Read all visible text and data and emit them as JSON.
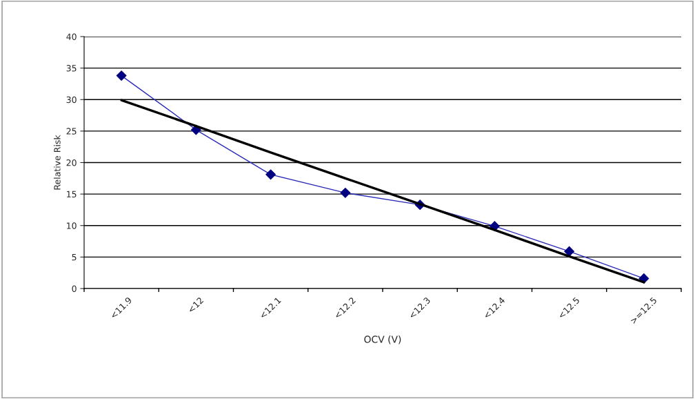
{
  "chart_data": {
    "type": "line",
    "xlabel": "OCV (V)",
    "ylabel": "Relative Risk",
    "categories": [
      "<11.9",
      "<12",
      "<12.1",
      "<12.2",
      "<12.3",
      "<12.4",
      "<12.5",
      ">=12.5"
    ],
    "series": [
      {
        "color": "#2b2bb8",
        "values": [
          33.8,
          25.2,
          18.1,
          15.2,
          13.3,
          9.9,
          5.9,
          1.6
        ],
        "marker": "diamond"
      },
      {
        "color": "#000000",
        "values": [
          29.9,
          25.8,
          21.6,
          17.5,
          13.4,
          9.3,
          5.1,
          1.0
        ],
        "marker": "none"
      }
    ],
    "ylim": [
      0,
      40
    ],
    "yticks": [
      0,
      5,
      10,
      15,
      20,
      25,
      30,
      35,
      40
    ],
    "grid": "y"
  }
}
